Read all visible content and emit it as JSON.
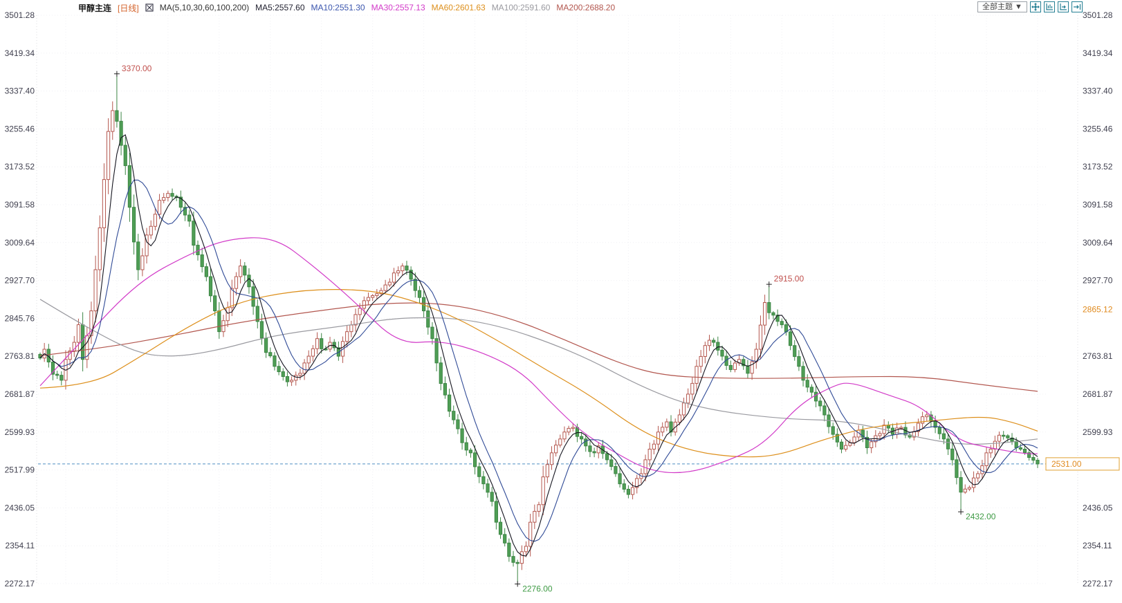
{
  "header": {
    "symbol": "甲醇主连",
    "period_tag": "[日线]",
    "ma_group_label": "MA(5,10,30,60,100,200)",
    "ma_items": [
      {
        "label": "MA5:2557.60",
        "color": "#1f1f2e"
      },
      {
        "label": "MA10:2551.30",
        "color": "#3a55ad"
      },
      {
        "label": "MA30:2557.13",
        "color": "#d23ac8"
      },
      {
        "label": "MA60:2601.63",
        "color": "#dd8f1b"
      },
      {
        "label": "MA100:2591.60",
        "color": "#9a9aa0"
      },
      {
        "label": "MA200:2688.20",
        "color": "#b2564e"
      }
    ],
    "theme_button": "全部主题 ▼",
    "tool_icons": [
      "move-crosshair-icon",
      "axis-scale-icon",
      "axis-pan-icon",
      "jump-latest-icon"
    ]
  },
  "chart_data": {
    "type": "candlestick",
    "title": "甲醇主连 日线",
    "candles_count": 235,
    "axis": {
      "ticks": [
        3501.28,
        3419.34,
        3337.4,
        3255.46,
        3173.52,
        3091.58,
        3009.64,
        2927.7,
        2845.76,
        2763.81,
        2681.87,
        2599.93,
        2517.99,
        2436.05,
        2354.11,
        2272.17
      ],
      "right_hidden_ticks": [
        2845.76,
        2517.99
      ],
      "right_settlement": 2865.12,
      "current_price": 2531.0
    },
    "key_points": [
      {
        "index": 18,
        "price": 3370.0,
        "kind": "high",
        "label": "3370.00"
      },
      {
        "index": 112,
        "price": 2276.0,
        "kind": "low",
        "label": "2276.00"
      },
      {
        "index": 171,
        "price": 2915.0,
        "kind": "high",
        "label": "2915.00"
      },
      {
        "index": 216,
        "price": 2432.0,
        "kind": "low",
        "label": "2432.00"
      }
    ],
    "close_keyframes": [
      [
        0,
        2760
      ],
      [
        1,
        2779
      ],
      [
        3,
        2725
      ],
      [
        5,
        2712
      ],
      [
        6,
        2757
      ],
      [
        8,
        2794
      ],
      [
        9,
        2832
      ],
      [
        10,
        2757
      ],
      [
        12,
        2862
      ],
      [
        13,
        2951
      ],
      [
        15,
        3146
      ],
      [
        16,
        3250
      ],
      [
        17,
        3295
      ],
      [
        18,
        3272
      ],
      [
        19,
        3220
      ],
      [
        20,
        3176
      ],
      [
        21,
        3086
      ],
      [
        22,
        3011
      ],
      [
        23,
        2951
      ],
      [
        24,
        2981
      ],
      [
        25,
        3026
      ],
      [
        27,
        3071
      ],
      [
        28,
        3101
      ],
      [
        30,
        3116
      ],
      [
        32,
        3108
      ],
      [
        33,
        3086
      ],
      [
        35,
        3056
      ],
      [
        36,
        3004
      ],
      [
        39,
        2936
      ],
      [
        41,
        2862
      ],
      [
        42,
        2817
      ],
      [
        44,
        2869
      ],
      [
        46,
        2936
      ],
      [
        47,
        2959
      ],
      [
        49,
        2914
      ],
      [
        51,
        2839
      ],
      [
        53,
        2772
      ],
      [
        55,
        2742
      ],
      [
        57,
        2720
      ],
      [
        59,
        2712
      ],
      [
        61,
        2727
      ],
      [
        63,
        2764
      ],
      [
        65,
        2802
      ],
      [
        66,
        2780
      ],
      [
        68,
        2794
      ],
      [
        70,
        2764
      ],
      [
        72,
        2817
      ],
      [
        74,
        2854
      ],
      [
        76,
        2884
      ],
      [
        78,
        2895
      ],
      [
        80,
        2906
      ],
      [
        82,
        2924
      ],
      [
        83,
        2944
      ],
      [
        85,
        2959
      ],
      [
        86,
        2950
      ],
      [
        88,
        2906
      ],
      [
        90,
        2862
      ],
      [
        92,
        2802
      ],
      [
        94,
        2705
      ],
      [
        96,
        2645
      ],
      [
        98,
        2607
      ],
      [
        99,
        2577
      ],
      [
        101,
        2555
      ],
      [
        102,
        2525
      ],
      [
        104,
        2488
      ],
      [
        106,
        2450
      ],
      [
        107,
        2405
      ],
      [
        109,
        2360
      ],
      [
        110,
        2331
      ],
      [
        112,
        2316
      ],
      [
        114,
        2353
      ],
      [
        115,
        2405
      ],
      [
        117,
        2443
      ],
      [
        118,
        2503
      ],
      [
        120,
        2555
      ],
      [
        122,
        2585
      ],
      [
        123,
        2600
      ],
      [
        125,
        2610
      ],
      [
        127,
        2585
      ],
      [
        128,
        2570
      ],
      [
        130,
        2555
      ],
      [
        131,
        2570
      ],
      [
        133,
        2540
      ],
      [
        135,
        2510
      ],
      [
        136,
        2488
      ],
      [
        138,
        2465
      ],
      [
        139,
        2480
      ],
      [
        141,
        2510
      ],
      [
        143,
        2563
      ],
      [
        145,
        2600
      ],
      [
        147,
        2622
      ],
      [
        148,
        2600
      ],
      [
        150,
        2637
      ],
      [
        152,
        2682
      ],
      [
        154,
        2742
      ],
      [
        156,
        2787
      ],
      [
        158,
        2794
      ],
      [
        160,
        2764
      ],
      [
        162,
        2735
      ],
      [
        164,
        2757
      ],
      [
        166,
        2727
      ],
      [
        168,
        2779
      ],
      [
        170,
        2880
      ],
      [
        171,
        2858
      ],
      [
        174,
        2832
      ],
      [
        176,
        2787
      ],
      [
        178,
        2742
      ],
      [
        180,
        2697
      ],
      [
        182,
        2667
      ],
      [
        184,
        2637
      ],
      [
        186,
        2595
      ],
      [
        188,
        2563
      ],
      [
        190,
        2577
      ],
      [
        192,
        2604
      ],
      [
        194,
        2566
      ],
      [
        196,
        2592
      ],
      [
        198,
        2615
      ],
      [
        200,
        2595
      ],
      [
        202,
        2610
      ],
      [
        204,
        2589
      ],
      [
        206,
        2619
      ],
      [
        208,
        2637
      ],
      [
        210,
        2610
      ],
      [
        212,
        2585
      ],
      [
        214,
        2540
      ],
      [
        216,
        2470
      ],
      [
        218,
        2480
      ],
      [
        220,
        2510
      ],
      [
        222,
        2555
      ],
      [
        224,
        2580
      ],
      [
        226,
        2592
      ],
      [
        228,
        2580
      ],
      [
        230,
        2563
      ],
      [
        232,
        2545
      ],
      [
        234,
        2531
      ]
    ],
    "ma_keyframes": {
      "ma30": [
        [
          0,
          2700
        ],
        [
          10,
          2800
        ],
        [
          23,
          2925
        ],
        [
          35,
          2985
        ],
        [
          44,
          3018
        ],
        [
          55,
          3022
        ],
        [
          64,
          2960
        ],
        [
          74,
          2880
        ],
        [
          84,
          2790
        ],
        [
          94,
          2798
        ],
        [
          104,
          2772
        ],
        [
          113,
          2730
        ],
        [
          120,
          2662
        ],
        [
          127,
          2600
        ],
        [
          134,
          2560
        ],
        [
          143,
          2515
        ],
        [
          152,
          2510
        ],
        [
          162,
          2540
        ],
        [
          170,
          2575
        ],
        [
          178,
          2660
        ],
        [
          186,
          2700
        ],
        [
          190,
          2709
        ],
        [
          199,
          2680
        ],
        [
          207,
          2655
        ],
        [
          215,
          2582
        ],
        [
          223,
          2565
        ],
        [
          231,
          2553
        ],
        [
          234,
          2553
        ]
      ],
      "ma60": [
        [
          0,
          2695
        ],
        [
          12,
          2700
        ],
        [
          23,
          2760
        ],
        [
          35,
          2830
        ],
        [
          46,
          2880
        ],
        [
          59,
          2905
        ],
        [
          72,
          2910
        ],
        [
          83,
          2898
        ],
        [
          96,
          2855
        ],
        [
          107,
          2800
        ],
        [
          118,
          2738
        ],
        [
          129,
          2680
        ],
        [
          141,
          2600
        ],
        [
          152,
          2560
        ],
        [
          163,
          2545
        ],
        [
          173,
          2548
        ],
        [
          184,
          2585
        ],
        [
          195,
          2612
        ],
        [
          207,
          2622
        ],
        [
          221,
          2635
        ],
        [
          228,
          2622
        ],
        [
          234,
          2602
        ]
      ],
      "ma100": [
        [
          0,
          2887
        ],
        [
          12,
          2820
        ],
        [
          23,
          2770
        ],
        [
          31,
          2762
        ],
        [
          41,
          2775
        ],
        [
          55,
          2810
        ],
        [
          72,
          2830
        ],
        [
          86,
          2850
        ],
        [
          104,
          2842
        ],
        [
          125,
          2776
        ],
        [
          142,
          2693
        ],
        [
          155,
          2650
        ],
        [
          174,
          2628
        ],
        [
          189,
          2625
        ],
        [
          205,
          2590
        ],
        [
          216,
          2572
        ],
        [
          226,
          2576
        ],
        [
          234,
          2585
        ]
      ],
      "ma200": [
        [
          0,
          2765
        ],
        [
          15,
          2782
        ],
        [
          31,
          2808
        ],
        [
          47,
          2838
        ],
        [
          65,
          2862
        ],
        [
          81,
          2880
        ],
        [
          96,
          2878
        ],
        [
          110,
          2848
        ],
        [
          123,
          2800
        ],
        [
          136,
          2748
        ],
        [
          146,
          2722
        ],
        [
          160,
          2716
        ],
        [
          176,
          2716
        ],
        [
          192,
          2720
        ],
        [
          207,
          2720
        ],
        [
          221,
          2702
        ],
        [
          234,
          2688
        ]
      ]
    },
    "colors": {
      "up_stroke": "#b4574e",
      "up_fill": "#ffffff",
      "down_fill": "#4f9e55",
      "down_stroke": "#3c8544",
      "ma5": "#14141e",
      "ma10": "#2f4a96",
      "ma30": "#d23ac8",
      "ma60": "#dd8f1b",
      "ma100": "#9a9aa0",
      "ma200": "#b2564e",
      "current_line": "#4e8cc2",
      "current_box_border": "#e0a030",
      "current_text": "#e08a1e",
      "settlement_text": "#e08a1e",
      "grid": "#f0f0f4",
      "axis_text": "#3f3f4e",
      "annotation_high": "#c0504d",
      "annotation_low": "#3f9b45",
      "marker": "#222222"
    }
  }
}
